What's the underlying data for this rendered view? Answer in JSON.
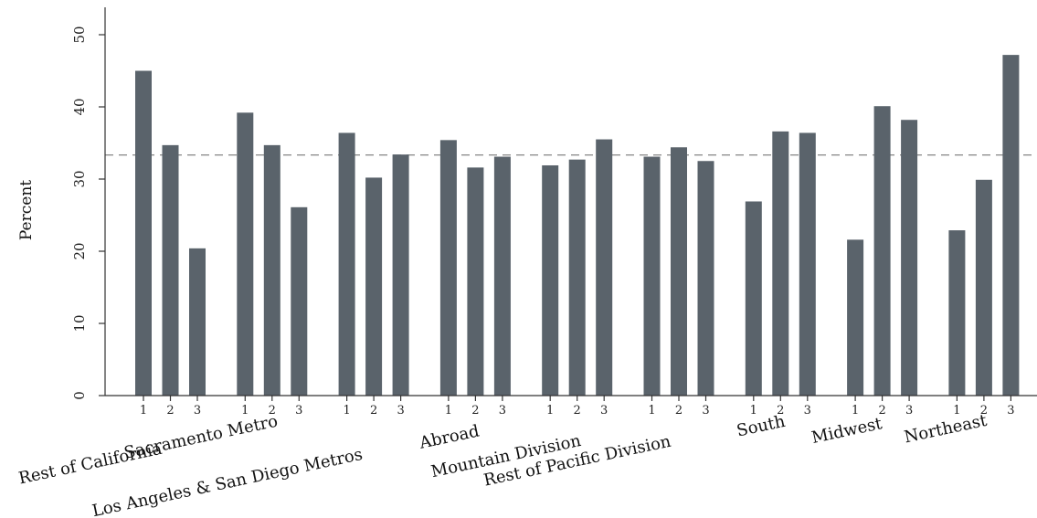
{
  "chart_data": {
    "type": "bar",
    "title": "",
    "xlabel": "",
    "ylabel": "Percent",
    "ylim": [
      0,
      54
    ],
    "yticks": [
      0,
      10,
      20,
      30,
      40,
      50
    ],
    "reference_line": 33.33,
    "bar_color": "#5a636b",
    "groups": [
      {
        "name": "Rest of California",
        "categories": [
          "1",
          "2",
          "3"
        ],
        "values": [
          45.0,
          34.7,
          20.4
        ]
      },
      {
        "name": "Sacramento Metro",
        "categories": [
          "1",
          "2",
          "3"
        ],
        "values": [
          39.2,
          34.7,
          26.1
        ]
      },
      {
        "name": "Los Angeles & San Diego Metros",
        "categories": [
          "1",
          "2",
          "3"
        ],
        "values": [
          36.4,
          30.2,
          33.4
        ]
      },
      {
        "name": "Abroad",
        "categories": [
          "1",
          "2",
          "3"
        ],
        "values": [
          35.4,
          31.6,
          33.1
        ]
      },
      {
        "name": "Mountain Division",
        "categories": [
          "1",
          "2",
          "3"
        ],
        "values": [
          31.9,
          32.7,
          35.5
        ]
      },
      {
        "name": "Rest of Pacific Division",
        "categories": [
          "1",
          "2",
          "3"
        ],
        "values": [
          33.1,
          34.4,
          32.5
        ]
      },
      {
        "name": "South",
        "categories": [
          "1",
          "2",
          "3"
        ],
        "values": [
          26.9,
          36.6,
          36.4
        ]
      },
      {
        "name": "Midwest",
        "categories": [
          "1",
          "2",
          "3"
        ],
        "values": [
          21.6,
          40.1,
          38.2
        ]
      },
      {
        "name": "Northeast",
        "categories": [
          "1",
          "2",
          "3"
        ],
        "values": [
          22.9,
          29.9,
          47.2
        ]
      }
    ]
  }
}
